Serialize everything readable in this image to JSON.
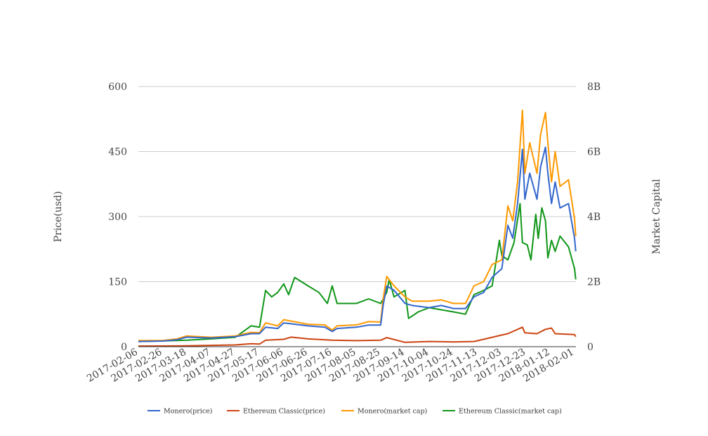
{
  "chart_data": {
    "type": "line",
    "title": "",
    "xlabel": "",
    "ylabel": "Price(usd)",
    "y2label": "Market Capital",
    "x_range": [
      "2017-02-06",
      "2018-02-02"
    ],
    "ylim": [
      0,
      600
    ],
    "y2lim": [
      0,
      8
    ],
    "y_ticks": [
      "0",
      "150",
      "300",
      "450",
      "600"
    ],
    "y_tick_values": [
      0,
      150,
      300,
      450,
      600
    ],
    "y2_ticks": [
      "0",
      "2B",
      "4B",
      "6B",
      "8B"
    ],
    "y2_tick_values": [
      0,
      2,
      4,
      6,
      8
    ],
    "x_ticks": [
      "2017-02-06",
      "2017-02-26",
      "2017-03-18",
      "2017-04-07",
      "2017-04-27",
      "2017-05-17",
      "2017-06-06",
      "2017-06-26",
      "2017-07-16",
      "2017-08-05",
      "2017-08-25",
      "2017-09-14",
      "2017-10-04",
      "2017-10-24",
      "2017-11-13",
      "2017-12-03",
      "2017-12-23",
      "2018-01-12",
      "2018-02-01"
    ],
    "grid": true,
    "legend_position": "bottom",
    "series": [
      {
        "name": "Monero(price)",
        "axis": "left",
        "color": "#3366cc",
        "points": [
          [
            "2017-02-06",
            12
          ],
          [
            "2017-02-26",
            13
          ],
          [
            "2017-03-10",
            16
          ],
          [
            "2017-03-18",
            22
          ],
          [
            "2017-04-07",
            20
          ],
          [
            "2017-04-27",
            23
          ],
          [
            "2017-05-10",
            30
          ],
          [
            "2017-05-17",
            30
          ],
          [
            "2017-05-22",
            45
          ],
          [
            "2017-06-01",
            42
          ],
          [
            "2017-06-06",
            55
          ],
          [
            "2017-06-26",
            48
          ],
          [
            "2017-07-10",
            45
          ],
          [
            "2017-07-16",
            35
          ],
          [
            "2017-07-20",
            42
          ],
          [
            "2017-08-05",
            45
          ],
          [
            "2017-08-15",
            50
          ],
          [
            "2017-08-25",
            50
          ],
          [
            "2017-08-27",
            95
          ],
          [
            "2017-08-30",
            140
          ],
          [
            "2017-09-05",
            130
          ],
          [
            "2017-09-14",
            100
          ],
          [
            "2017-09-20",
            95
          ],
          [
            "2017-10-04",
            90
          ],
          [
            "2017-10-14",
            95
          ],
          [
            "2017-10-24",
            88
          ],
          [
            "2017-11-03",
            88
          ],
          [
            "2017-11-10",
            115
          ],
          [
            "2017-11-18",
            125
          ],
          [
            "2017-11-25",
            160
          ],
          [
            "2017-12-03",
            180
          ],
          [
            "2017-12-08",
            280
          ],
          [
            "2017-12-12",
            250
          ],
          [
            "2017-12-16",
            330
          ],
          [
            "2017-12-20",
            455
          ],
          [
            "2017-12-22",
            340
          ],
          [
            "2017-12-26",
            400
          ],
          [
            "2018-01-01",
            340
          ],
          [
            "2018-01-04",
            415
          ],
          [
            "2018-01-08",
            460
          ],
          [
            "2018-01-10",
            400
          ],
          [
            "2018-01-13",
            330
          ],
          [
            "2018-01-16",
            380
          ],
          [
            "2018-01-20",
            320
          ],
          [
            "2018-01-27",
            330
          ],
          [
            "2018-02-01",
            250
          ],
          [
            "2018-02-02",
            220
          ]
        ]
      },
      {
        "name": "Ethereum Classic(price)",
        "axis": "left",
        "color": "#cc4411",
        "points": [
          [
            "2017-02-06",
            1.5
          ],
          [
            "2017-03-18",
            2
          ],
          [
            "2017-04-27",
            4
          ],
          [
            "2017-05-10",
            7
          ],
          [
            "2017-05-17",
            6
          ],
          [
            "2017-05-22",
            15
          ],
          [
            "2017-06-06",
            17
          ],
          [
            "2017-06-12",
            22
          ],
          [
            "2017-06-26",
            18
          ],
          [
            "2017-07-16",
            15
          ],
          [
            "2017-08-05",
            14
          ],
          [
            "2017-08-25",
            15
          ],
          [
            "2017-08-30",
            21
          ],
          [
            "2017-09-14",
            10
          ],
          [
            "2017-10-04",
            12
          ],
          [
            "2017-10-24",
            11
          ],
          [
            "2017-11-10",
            12
          ],
          [
            "2017-11-18",
            17
          ],
          [
            "2017-12-03",
            27
          ],
          [
            "2017-12-08",
            30
          ],
          [
            "2017-12-20",
            45
          ],
          [
            "2017-12-22",
            32
          ],
          [
            "2018-01-01",
            30
          ],
          [
            "2018-01-08",
            40
          ],
          [
            "2018-01-13",
            43
          ],
          [
            "2018-01-16",
            30
          ],
          [
            "2018-02-01",
            28
          ],
          [
            "2018-02-02",
            23
          ]
        ]
      },
      {
        "name": "Monero(market cap)",
        "axis": "right",
        "color": "#ff9900",
        "points": [
          [
            "2017-02-06",
            0.19
          ],
          [
            "2017-02-26",
            0.19
          ],
          [
            "2017-03-10",
            0.24
          ],
          [
            "2017-03-18",
            0.33
          ],
          [
            "2017-04-07",
            0.29
          ],
          [
            "2017-04-27",
            0.33
          ],
          [
            "2017-05-10",
            0.44
          ],
          [
            "2017-05-17",
            0.43
          ],
          [
            "2017-05-22",
            0.73
          ],
          [
            "2017-06-01",
            0.64
          ],
          [
            "2017-06-06",
            0.83
          ],
          [
            "2017-06-26",
            0.69
          ],
          [
            "2017-07-10",
            0.67
          ],
          [
            "2017-07-16",
            0.51
          ],
          [
            "2017-07-20",
            0.64
          ],
          [
            "2017-08-05",
            0.67
          ],
          [
            "2017-08-15",
            0.77
          ],
          [
            "2017-08-25",
            0.76
          ],
          [
            "2017-08-27",
            1.47
          ],
          [
            "2017-08-30",
            2.16
          ],
          [
            "2017-09-05",
            1.87
          ],
          [
            "2017-09-14",
            1.53
          ],
          [
            "2017-09-20",
            1.4
          ],
          [
            "2017-10-04",
            1.4
          ],
          [
            "2017-10-14",
            1.44
          ],
          [
            "2017-10-24",
            1.33
          ],
          [
            "2017-11-03",
            1.33
          ],
          [
            "2017-11-10",
            1.87
          ],
          [
            "2017-11-18",
            2.0
          ],
          [
            "2017-11-25",
            2.53
          ],
          [
            "2017-12-03",
            2.67
          ],
          [
            "2017-12-08",
            4.33
          ],
          [
            "2017-12-12",
            3.87
          ],
          [
            "2017-12-16",
            5.07
          ],
          [
            "2017-12-20",
            7.27
          ],
          [
            "2017-12-22",
            5.33
          ],
          [
            "2017-12-26",
            6.27
          ],
          [
            "2018-01-01",
            5.33
          ],
          [
            "2018-01-04",
            6.53
          ],
          [
            "2018-01-08",
            7.2
          ],
          [
            "2018-01-10",
            6.27
          ],
          [
            "2018-01-13",
            5.07
          ],
          [
            "2018-01-16",
            6.0
          ],
          [
            "2018-01-20",
            4.93
          ],
          [
            "2018-01-27",
            5.13
          ],
          [
            "2018-02-01",
            3.93
          ],
          [
            "2018-02-02",
            3.4
          ]
        ]
      },
      {
        "name": "Ethereum Classic(market cap)",
        "axis": "right",
        "color": "#109618",
        "points": [
          [
            "2017-02-06",
            0.16
          ],
          [
            "2017-03-18",
            0.2
          ],
          [
            "2017-04-07",
            0.24
          ],
          [
            "2017-04-27",
            0.29
          ],
          [
            "2017-05-10",
            0.64
          ],
          [
            "2017-05-17",
            0.6
          ],
          [
            "2017-05-22",
            1.73
          ],
          [
            "2017-05-27",
            1.53
          ],
          [
            "2017-06-01",
            1.67
          ],
          [
            "2017-06-06",
            1.93
          ],
          [
            "2017-06-10",
            1.6
          ],
          [
            "2017-06-15",
            2.13
          ],
          [
            "2017-06-26",
            1.87
          ],
          [
            "2017-07-05",
            1.67
          ],
          [
            "2017-07-12",
            1.33
          ],
          [
            "2017-07-16",
            1.87
          ],
          [
            "2017-07-20",
            1.33
          ],
          [
            "2017-08-05",
            1.33
          ],
          [
            "2017-08-15",
            1.47
          ],
          [
            "2017-08-25",
            1.33
          ],
          [
            "2017-08-30",
            1.67
          ],
          [
            "2017-09-01",
            2.07
          ],
          [
            "2017-09-05",
            1.53
          ],
          [
            "2017-09-14",
            1.73
          ],
          [
            "2017-09-17",
            0.87
          ],
          [
            "2017-09-25",
            1.07
          ],
          [
            "2017-10-04",
            1.2
          ],
          [
            "2017-10-24",
            1.07
          ],
          [
            "2017-11-03",
            1.0
          ],
          [
            "2017-11-10",
            1.6
          ],
          [
            "2017-11-18",
            1.73
          ],
          [
            "2017-11-25",
            1.87
          ],
          [
            "2017-12-01",
            3.27
          ],
          [
            "2017-12-03",
            2.8
          ],
          [
            "2017-12-08",
            2.67
          ],
          [
            "2017-12-13",
            3.2
          ],
          [
            "2017-12-18",
            4.4
          ],
          [
            "2017-12-20",
            3.2
          ],
          [
            "2017-12-24",
            3.13
          ],
          [
            "2017-12-27",
            2.67
          ],
          [
            "2017-12-31",
            4.07
          ],
          [
            "2018-01-02",
            3.33
          ],
          [
            "2018-01-05",
            4.27
          ],
          [
            "2018-01-08",
            3.87
          ],
          [
            "2018-01-10",
            2.73
          ],
          [
            "2018-01-13",
            3.27
          ],
          [
            "2018-01-16",
            2.93
          ],
          [
            "2018-01-20",
            3.4
          ],
          [
            "2018-01-27",
            3.07
          ],
          [
            "2018-02-01",
            2.4
          ],
          [
            "2018-02-02",
            2.07
          ]
        ]
      }
    ]
  }
}
